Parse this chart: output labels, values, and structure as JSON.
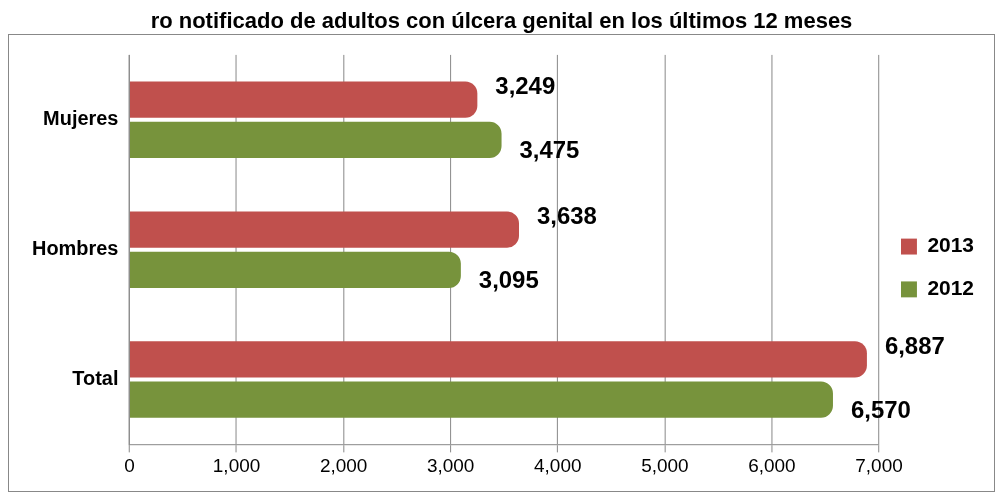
{
  "chart_data": {
    "type": "bar",
    "orientation": "horizontal",
    "title": "ro notificado de adultos con úlcera genital en los últimos 12 meses",
    "categories": [
      "Mujeres",
      "Hombres",
      "Total"
    ],
    "series": [
      {
        "name": "2013",
        "color": "#c0504d",
        "values": [
          3249,
          3638,
          6887
        ],
        "value_labels": [
          "3,249",
          "3,638",
          "6,887"
        ]
      },
      {
        "name": "2012",
        "color": "#77933c",
        "values": [
          3475,
          3095,
          6570
        ],
        "value_labels": [
          "3,475",
          "3,095",
          "6,570"
        ]
      }
    ],
    "xlim": [
      0,
      7000
    ],
    "xticks": [
      0,
      {
        "value": 1000,
        "label": "1,000"
      },
      {
        "value": 2000,
        "label": "2,000"
      },
      {
        "value": 3000,
        "label": "3,000"
      },
      {
        "value": 4000,
        "label": "4,000"
      },
      {
        "value": 5000,
        "label": "5,000"
      },
      {
        "value": 6000,
        "label": "6,000"
      },
      {
        "value": 7000,
        "label": "7,000"
      }
    ],
    "grid": "x",
    "legend": "right"
  }
}
